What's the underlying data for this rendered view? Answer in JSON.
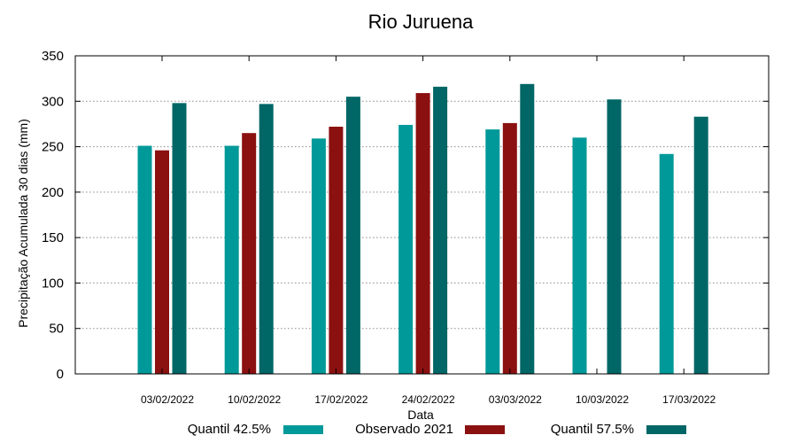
{
  "chart_data": {
    "type": "bar",
    "title": "Rio Juruena",
    "xlabel": "Data",
    "ylabel": "Precipitação Acumulada 30 dias (mm)",
    "ylim": [
      0,
      350
    ],
    "yticks": [
      0,
      50,
      100,
      150,
      200,
      250,
      300,
      350
    ],
    "grid": true,
    "legend_position": "bottom",
    "categories": [
      "03/02/2022",
      "10/02/2022",
      "17/02/2022",
      "24/02/2022",
      "03/03/2022",
      "10/03/2022",
      "17/03/2022"
    ],
    "series": [
      {
        "name": "Quantil 42.5%",
        "color": "#009999",
        "values": [
          251,
          251,
          259,
          274,
          269,
          260,
          242
        ]
      },
      {
        "name": "Observado 2021",
        "color": "#8b1010",
        "values": [
          246,
          265,
          272,
          309,
          276,
          null,
          null
        ]
      },
      {
        "name": "Quantil 57.5%",
        "color": "#006666",
        "values": [
          298,
          297,
          305,
          316,
          319,
          302,
          283
        ]
      }
    ]
  }
}
